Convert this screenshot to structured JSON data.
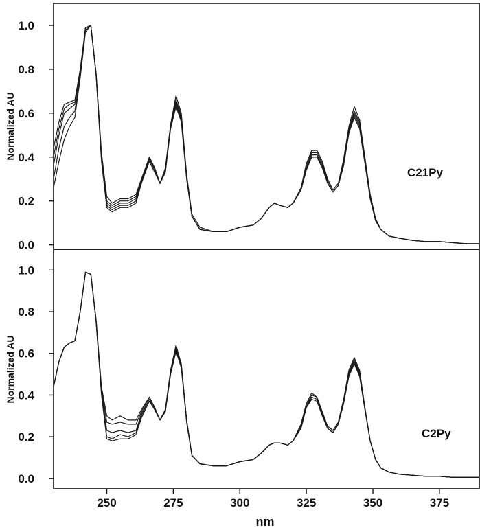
{
  "chart_data": [
    {
      "type": "line",
      "panel_label": "C21Py",
      "ylabel": "Normalized AU",
      "xlabel": "",
      "xlim": [
        230,
        390
      ],
      "ylim": [
        -0.02,
        1.1
      ],
      "y_ticks": [
        "0.0",
        "0.2",
        "0.4",
        "0.6",
        "0.8",
        "1.0"
      ],
      "y_tick_values": [
        0.0,
        0.2,
        0.4,
        0.6,
        0.8,
        1.0
      ],
      "x_ticks": [],
      "grid": false,
      "line_color": "#1a1a1a",
      "x": [
        230,
        232,
        234,
        236,
        238,
        240,
        242,
        244,
        246,
        248,
        250,
        252,
        255,
        258,
        261,
        263,
        266,
        268,
        270,
        272,
        274,
        276,
        278,
        280,
        282,
        285,
        290,
        295,
        300,
        305,
        308,
        311,
        313,
        315,
        318,
        320,
        323,
        325,
        327,
        329,
        331,
        333,
        335,
        337,
        339,
        341,
        343,
        345,
        347,
        349,
        351,
        353,
        356,
        360,
        365,
        370,
        375,
        380,
        385,
        390
      ],
      "series": [
        {
          "values": [
            0.44,
            0.56,
            0.64,
            0.65,
            0.66,
            0.8,
            0.99,
            1.0,
            0.78,
            0.42,
            0.22,
            0.19,
            0.21,
            0.21,
            0.23,
            0.3,
            0.4,
            0.35,
            0.28,
            0.35,
            0.55,
            0.68,
            0.6,
            0.32,
            0.14,
            0.08,
            0.06,
            0.06,
            0.08,
            0.09,
            0.12,
            0.17,
            0.19,
            0.18,
            0.17,
            0.19,
            0.26,
            0.37,
            0.43,
            0.43,
            0.38,
            0.3,
            0.25,
            0.28,
            0.39,
            0.54,
            0.63,
            0.57,
            0.4,
            0.23,
            0.12,
            0.07,
            0.04,
            0.03,
            0.02,
            0.015,
            0.015,
            0.01,
            0.005,
            0.005
          ]
        },
        {
          "values": [
            0.4,
            0.53,
            0.62,
            0.64,
            0.65,
            0.79,
            0.99,
            1.0,
            0.78,
            0.41,
            0.2,
            0.18,
            0.2,
            0.2,
            0.22,
            0.29,
            0.4,
            0.35,
            0.28,
            0.34,
            0.55,
            0.66,
            0.59,
            0.31,
            0.13,
            0.07,
            0.06,
            0.06,
            0.08,
            0.09,
            0.12,
            0.17,
            0.19,
            0.18,
            0.17,
            0.19,
            0.26,
            0.36,
            0.42,
            0.42,
            0.37,
            0.29,
            0.25,
            0.28,
            0.38,
            0.53,
            0.61,
            0.56,
            0.39,
            0.22,
            0.11,
            0.07,
            0.04,
            0.03,
            0.02,
            0.015,
            0.015,
            0.01,
            0.005,
            0.005
          ]
        },
        {
          "values": [
            0.36,
            0.5,
            0.6,
            0.62,
            0.64,
            0.78,
            0.98,
            1.0,
            0.78,
            0.4,
            0.19,
            0.17,
            0.19,
            0.19,
            0.21,
            0.29,
            0.39,
            0.34,
            0.28,
            0.34,
            0.54,
            0.65,
            0.58,
            0.31,
            0.13,
            0.07,
            0.06,
            0.06,
            0.08,
            0.09,
            0.12,
            0.17,
            0.19,
            0.18,
            0.17,
            0.19,
            0.25,
            0.35,
            0.41,
            0.41,
            0.36,
            0.28,
            0.24,
            0.27,
            0.37,
            0.52,
            0.6,
            0.55,
            0.38,
            0.22,
            0.11,
            0.07,
            0.04,
            0.03,
            0.02,
            0.015,
            0.015,
            0.01,
            0.005,
            0.005
          ]
        },
        {
          "values": [
            0.3,
            0.44,
            0.54,
            0.58,
            0.61,
            0.77,
            0.98,
            1.0,
            0.77,
            0.39,
            0.18,
            0.16,
            0.18,
            0.18,
            0.2,
            0.28,
            0.39,
            0.34,
            0.28,
            0.33,
            0.54,
            0.64,
            0.57,
            0.3,
            0.13,
            0.07,
            0.06,
            0.06,
            0.08,
            0.09,
            0.12,
            0.17,
            0.19,
            0.18,
            0.17,
            0.19,
            0.25,
            0.35,
            0.4,
            0.4,
            0.36,
            0.28,
            0.24,
            0.27,
            0.37,
            0.51,
            0.59,
            0.54,
            0.38,
            0.21,
            0.11,
            0.07,
            0.04,
            0.03,
            0.02,
            0.015,
            0.015,
            0.01,
            0.005,
            0.005
          ]
        },
        {
          "values": [
            0.26,
            0.38,
            0.48,
            0.54,
            0.58,
            0.76,
            0.97,
            1.0,
            0.77,
            0.38,
            0.17,
            0.15,
            0.17,
            0.17,
            0.19,
            0.28,
            0.38,
            0.33,
            0.28,
            0.33,
            0.53,
            0.63,
            0.56,
            0.3,
            0.13,
            0.07,
            0.06,
            0.06,
            0.08,
            0.09,
            0.12,
            0.17,
            0.19,
            0.18,
            0.17,
            0.19,
            0.25,
            0.34,
            0.4,
            0.4,
            0.35,
            0.28,
            0.24,
            0.27,
            0.36,
            0.51,
            0.58,
            0.53,
            0.37,
            0.21,
            0.11,
            0.07,
            0.04,
            0.03,
            0.02,
            0.015,
            0.015,
            0.01,
            0.005,
            0.005
          ]
        }
      ]
    },
    {
      "type": "line",
      "panel_label": "C2Py",
      "ylabel": "Normalized AU",
      "xlabel": "nm",
      "xlim": [
        230,
        390
      ],
      "ylim": [
        -0.05,
        1.1
      ],
      "y_ticks": [
        "0.0",
        "0.2",
        "0.4",
        "0.6",
        "0.8",
        "1.0"
      ],
      "y_tick_values": [
        0.0,
        0.2,
        0.4,
        0.6,
        0.8,
        1.0
      ],
      "x_ticks": [
        "250",
        "275",
        "300",
        "325",
        "350",
        "375"
      ],
      "x_tick_values": [
        250,
        275,
        300,
        325,
        350,
        375
      ],
      "grid": false,
      "line_color": "#1a1a1a",
      "x": [
        230,
        232,
        234,
        236,
        238,
        240,
        242,
        244,
        246,
        248,
        250,
        252,
        255,
        258,
        261,
        263,
        266,
        268,
        270,
        272,
        274,
        276,
        278,
        280,
        282,
        285,
        290,
        295,
        300,
        305,
        308,
        311,
        313,
        315,
        318,
        320,
        323,
        325,
        327,
        329,
        331,
        333,
        335,
        337,
        339,
        341,
        343,
        345,
        347,
        349,
        351,
        353,
        356,
        360,
        365,
        370,
        375,
        380,
        385,
        390
      ],
      "series": [
        {
          "values": [
            0.44,
            0.56,
            0.63,
            0.65,
            0.66,
            0.8,
            0.99,
            0.98,
            0.76,
            0.44,
            0.3,
            0.28,
            0.3,
            0.28,
            0.28,
            0.33,
            0.39,
            0.34,
            0.28,
            0.33,
            0.52,
            0.64,
            0.55,
            0.28,
            0.11,
            0.07,
            0.06,
            0.06,
            0.08,
            0.09,
            0.12,
            0.16,
            0.17,
            0.17,
            0.16,
            0.18,
            0.26,
            0.36,
            0.41,
            0.39,
            0.32,
            0.25,
            0.23,
            0.27,
            0.38,
            0.52,
            0.58,
            0.52,
            0.34,
            0.18,
            0.09,
            0.05,
            0.03,
            0.02,
            0.015,
            0.01,
            0.01,
            0.005,
            0.005,
            0.005
          ]
        },
        {
          "values": [
            0.44,
            0.56,
            0.63,
            0.65,
            0.66,
            0.8,
            0.99,
            0.98,
            0.76,
            0.43,
            0.27,
            0.26,
            0.27,
            0.26,
            0.26,
            0.32,
            0.39,
            0.34,
            0.28,
            0.33,
            0.52,
            0.63,
            0.55,
            0.28,
            0.11,
            0.07,
            0.06,
            0.06,
            0.08,
            0.09,
            0.12,
            0.16,
            0.17,
            0.17,
            0.16,
            0.18,
            0.26,
            0.35,
            0.4,
            0.39,
            0.31,
            0.25,
            0.23,
            0.27,
            0.37,
            0.51,
            0.57,
            0.51,
            0.34,
            0.18,
            0.09,
            0.05,
            0.03,
            0.02,
            0.015,
            0.01,
            0.01,
            0.005,
            0.005,
            0.005
          ]
        },
        {
          "values": [
            0.44,
            0.56,
            0.63,
            0.65,
            0.66,
            0.8,
            0.99,
            0.98,
            0.75,
            0.42,
            0.23,
            0.22,
            0.23,
            0.22,
            0.23,
            0.31,
            0.38,
            0.33,
            0.28,
            0.33,
            0.51,
            0.62,
            0.54,
            0.28,
            0.11,
            0.07,
            0.06,
            0.06,
            0.08,
            0.09,
            0.12,
            0.16,
            0.17,
            0.17,
            0.16,
            0.18,
            0.25,
            0.35,
            0.39,
            0.38,
            0.31,
            0.24,
            0.22,
            0.26,
            0.37,
            0.5,
            0.56,
            0.5,
            0.33,
            0.18,
            0.09,
            0.05,
            0.03,
            0.02,
            0.015,
            0.01,
            0.01,
            0.005,
            0.005,
            0.005
          ]
        },
        {
          "values": [
            0.44,
            0.56,
            0.63,
            0.65,
            0.66,
            0.8,
            0.99,
            0.98,
            0.75,
            0.41,
            0.2,
            0.19,
            0.21,
            0.2,
            0.22,
            0.3,
            0.38,
            0.33,
            0.28,
            0.32,
            0.51,
            0.62,
            0.54,
            0.27,
            0.11,
            0.07,
            0.06,
            0.06,
            0.08,
            0.09,
            0.12,
            0.16,
            0.17,
            0.17,
            0.16,
            0.18,
            0.25,
            0.34,
            0.39,
            0.38,
            0.3,
            0.24,
            0.22,
            0.26,
            0.36,
            0.5,
            0.56,
            0.5,
            0.33,
            0.18,
            0.09,
            0.05,
            0.03,
            0.02,
            0.015,
            0.01,
            0.01,
            0.005,
            0.005,
            0.005
          ]
        },
        {
          "values": [
            0.44,
            0.56,
            0.63,
            0.65,
            0.66,
            0.8,
            0.99,
            0.98,
            0.75,
            0.4,
            0.19,
            0.18,
            0.19,
            0.19,
            0.21,
            0.29,
            0.37,
            0.33,
            0.28,
            0.32,
            0.5,
            0.61,
            0.53,
            0.27,
            0.11,
            0.07,
            0.06,
            0.06,
            0.08,
            0.09,
            0.12,
            0.16,
            0.17,
            0.17,
            0.16,
            0.18,
            0.24,
            0.34,
            0.38,
            0.37,
            0.3,
            0.24,
            0.22,
            0.26,
            0.36,
            0.49,
            0.55,
            0.49,
            0.33,
            0.18,
            0.09,
            0.05,
            0.03,
            0.02,
            0.015,
            0.01,
            0.01,
            0.005,
            0.005,
            0.005
          ]
        }
      ]
    }
  ]
}
